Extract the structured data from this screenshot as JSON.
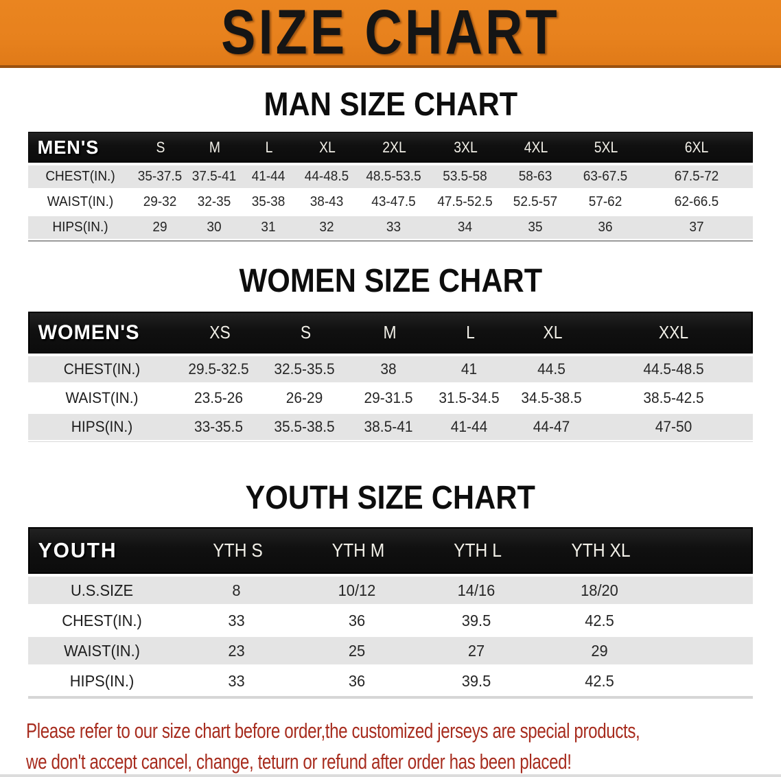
{
  "banner": {
    "title": "SIZE CHART",
    "bg_color": "#E7811D",
    "border_color": "#9A5110",
    "text_color": "#151515"
  },
  "sections": [
    {
      "id": "men",
      "title": "MAN SIZE CHART",
      "header_label": "MEN'S",
      "columns": [
        "S",
        "M",
        "L",
        "XL",
        "2XL",
        "3XL",
        "4XL",
        "5XL",
        "6XL"
      ],
      "rows": [
        {
          "label": "CHEST(IN.)",
          "values": [
            "35-37.5",
            "37.5-41",
            "41-44",
            "44-48.5",
            "48.5-53.5",
            "53.5-58",
            "58-63",
            "63-67.5",
            "67.5-72"
          ]
        },
        {
          "label": "WAIST(IN.)",
          "values": [
            "29-32",
            "32-35",
            "35-38",
            "38-43",
            "43-47.5",
            "47.5-52.5",
            "52.5-57",
            "57-62",
            "62-66.5"
          ]
        },
        {
          "label": "HIPS(IN.)",
          "values": [
            "29",
            "30",
            "31",
            "32",
            "33",
            "34",
            "35",
            "36",
            "37"
          ]
        }
      ]
    },
    {
      "id": "women",
      "title": "WOMEN SIZE CHART",
      "header_label": "WOMEN'S",
      "columns": [
        "XS",
        "S",
        "M",
        "L",
        "XL",
        "XXL"
      ],
      "rows": [
        {
          "label": "CHEST(IN.)",
          "values": [
            "29.5-32.5",
            "32.5-35.5",
            "38",
            "41",
            "44.5",
            "44.5-48.5"
          ]
        },
        {
          "label": "WAIST(IN.)",
          "values": [
            "23.5-26",
            "26-29",
            "29-31.5",
            "31.5-34.5",
            "34.5-38.5",
            "38.5-42.5"
          ]
        },
        {
          "label": "HIPS(IN.)",
          "values": [
            "33-35.5",
            "35.5-38.5",
            "38.5-41",
            "41-44",
            "44-47",
            "47-50"
          ]
        }
      ]
    },
    {
      "id": "youth",
      "title": "YOUTH SIZE CHART",
      "header_label": "YOUTH",
      "columns": [
        "YTH S",
        "YTH M",
        "YTH L",
        "YTH XL"
      ],
      "rows": [
        {
          "label": "U.S.SIZE",
          "values": [
            "8",
            "10/12",
            "14/16",
            "18/20"
          ]
        },
        {
          "label": "CHEST(IN.)",
          "values": [
            "33",
            "36",
            "39.5",
            "42.5"
          ]
        },
        {
          "label": "WAIST(IN.)",
          "values": [
            "23",
            "25",
            "27",
            "29"
          ]
        },
        {
          "label": "HIPS(IN.)",
          "values": [
            "33",
            "36",
            "39.5",
            "42.5"
          ]
        }
      ]
    }
  ],
  "disclaimer": {
    "line1": "Please refer to our size chart before order,the customized jerseys are special products,",
    "line2": "we don't accept cancel, change, teturn or refund after order has been placed!",
    "color": "#A72C1E"
  },
  "colors": {
    "table_header_bg": "#141414",
    "row_alt_bg": "#E4E4E4",
    "row_bg": "#FFFFFF"
  }
}
